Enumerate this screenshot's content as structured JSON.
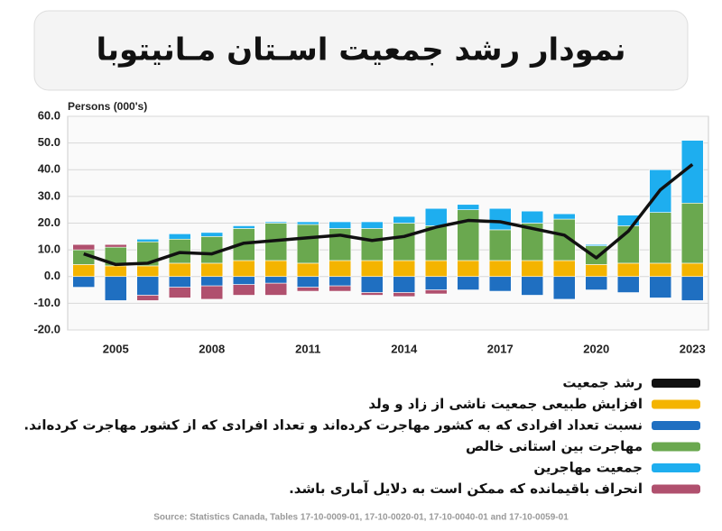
{
  "chart_data": {
    "type": "bar",
    "stacked": true,
    "title": "نمودار رشد جمعیت اسـتان مـانیتوبا",
    "y_label": "Persons (000's)",
    "source": "Source: Statistics  Canada, Tables 17-10-0009-01,  17-10-0020-01,  17-10-0040-01  and 17-10-0059-01",
    "categories": [
      null,
      "2005",
      null,
      null,
      "2008",
      null,
      null,
      "2011",
      null,
      null,
      "2014",
      null,
      null,
      "2017",
      null,
      null,
      "2020",
      null,
      null,
      "2023"
    ],
    "ylim": [
      -20,
      60
    ],
    "yticks": [
      {
        "value": -20,
        "label": "-20.0"
      },
      {
        "value": -10,
        "label": "-10.0"
      },
      {
        "value": 0,
        "label": "0.0"
      },
      {
        "value": 10,
        "label": "10.0"
      },
      {
        "value": 20,
        "label": "20.0"
      },
      {
        "value": 30,
        "label": "30.0"
      },
      {
        "value": 40,
        "label": "40.0"
      },
      {
        "value": 50,
        "label": "50.0"
      },
      {
        "value": 60,
        "label": "60.0"
      }
    ],
    "grid": true,
    "series": [
      {
        "name": "رشد جمعیت",
        "type": "line",
        "color": "#111111",
        "values": [
          8.5,
          4.5,
          5,
          9,
          8.5,
          12.5,
          13.5,
          14.5,
          15.5,
          13.5,
          15,
          18.5,
          21,
          20.5,
          18,
          15.5,
          7,
          17,
          32.5,
          42
        ]
      },
      {
        "name": "افزایش طبیعی جمعیت ناشی از زاد و ولد",
        "color": "#f4b400",
        "values": [
          4.5,
          4,
          4,
          5,
          5,
          6,
          6,
          5,
          6,
          6,
          6,
          6,
          6,
          6,
          6,
          6,
          4.5,
          5,
          5,
          5
        ]
      },
      {
        "name": "نسبت تعداد افرادی که به کشور مهاجرت کرده‌اند و تعداد افرادی که از کشور مهاجرت کرده‌اند.",
        "color": "#1f6fc1",
        "values": [
          -4,
          -9,
          -7,
          -4,
          -3.5,
          -3,
          -2.5,
          -4,
          -3.5,
          -6,
          -6,
          -5,
          -5,
          -5.5,
          -7,
          -8.5,
          -5,
          -6,
          -8,
          -9
        ]
      },
      {
        "name": "مهاجرت بین استانی خالص",
        "color": "#6aa84f",
        "values": [
          5.5,
          7,
          9,
          9,
          10,
          12,
          14,
          14.5,
          12,
          12,
          14,
          13,
          19,
          11.5,
          14,
          15.5,
          7,
          14,
          19,
          22.5
        ]
      },
      {
        "name": "جمعیت مهاجرین",
        "color": "#1eaeef",
        "values": [
          0,
          0,
          1,
          2,
          1.5,
          1,
          0.5,
          1,
          2.5,
          2.5,
          2.5,
          6.5,
          2,
          8,
          4.5,
          2,
          0.5,
          4,
          16,
          23.5
        ]
      },
      {
        "name": "انحراف باقیمانده که ممکن است به دلایل آماری باشد.",
        "color": "#b0506e",
        "values": [
          2,
          1,
          -2,
          -4,
          -5,
          -4,
          -4.5,
          -1.5,
          -2,
          -1,
          -1.5,
          -1.5,
          0,
          0,
          0,
          0,
          0,
          0,
          0,
          0
        ]
      }
    ]
  }
}
